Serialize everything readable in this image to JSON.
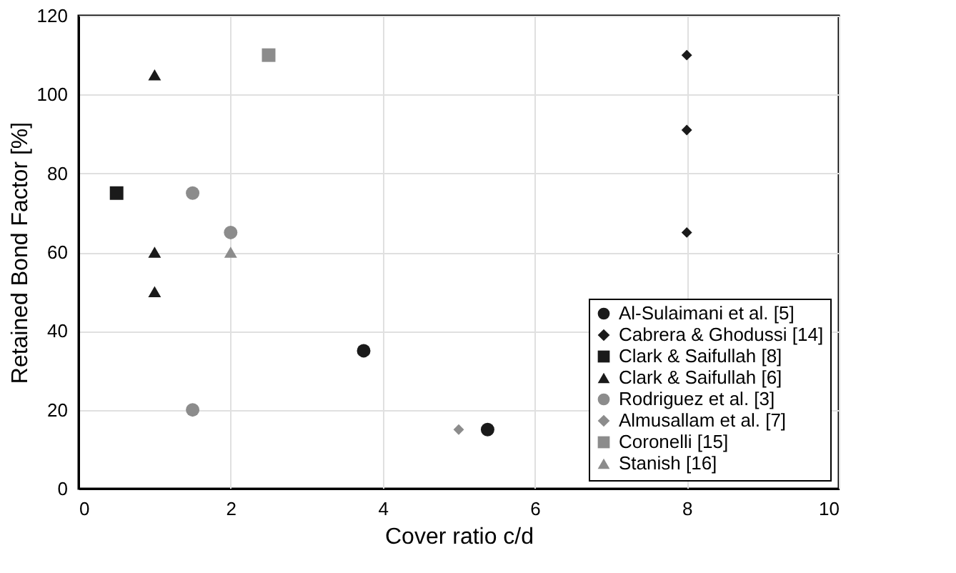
{
  "chart_data": {
    "type": "scatter",
    "xlabel": "Cover ratio c/d",
    "ylabel": "Retained Bond Factor  [%]",
    "xlim": [
      0,
      10
    ],
    "xticks": [
      0,
      2,
      4,
      6,
      8,
      10
    ],
    "ylim": [
      0,
      120
    ],
    "yticks": [
      0,
      20,
      40,
      60,
      80,
      100,
      120
    ],
    "grid": true,
    "legend": "bottom right",
    "series": [
      {
        "name": "Al-Sulaimani et al. [5]",
        "color": "#1a1a1a",
        "marker": "circle",
        "x": [
          3.75,
          5.38
        ],
        "values": [
          35,
          15
        ]
      },
      {
        "name": "Cabrera & Ghodussi [14]",
        "color": "#1a1a1a",
        "marker": "diamond",
        "x": [
          8,
          8,
          8
        ],
        "values": [
          110,
          91,
          65
        ]
      },
      {
        "name": "Clark & Saifullah [8]",
        "color": "#1a1a1a",
        "marker": "square",
        "x": [
          0.5
        ],
        "values": [
          75
        ]
      },
      {
        "name": "Clark & Saifullah [6]",
        "color": "#1a1a1a",
        "marker": "triangle",
        "x": [
          1,
          1,
          1
        ],
        "values": [
          105,
          60,
          50
        ]
      },
      {
        "name": "Rodriguez et al. [3]",
        "color": "#8c8c8c",
        "marker": "circle",
        "x": [
          1.5,
          2,
          1.5
        ],
        "values": [
          75,
          65,
          20
        ]
      },
      {
        "name": "Almusallam et al. [7]",
        "color": "#8c8c8c",
        "marker": "diamond",
        "x": [
          5
        ],
        "values": [
          15
        ]
      },
      {
        "name": "Coronelli [15]",
        "color": "#8c8c8c",
        "marker": "square",
        "x": [
          2.5
        ],
        "values": [
          110
        ]
      },
      {
        "name": "Stanish [16]",
        "color": "#8c8c8c",
        "marker": "triangle",
        "x": [
          2
        ],
        "values": [
          60
        ]
      }
    ]
  }
}
